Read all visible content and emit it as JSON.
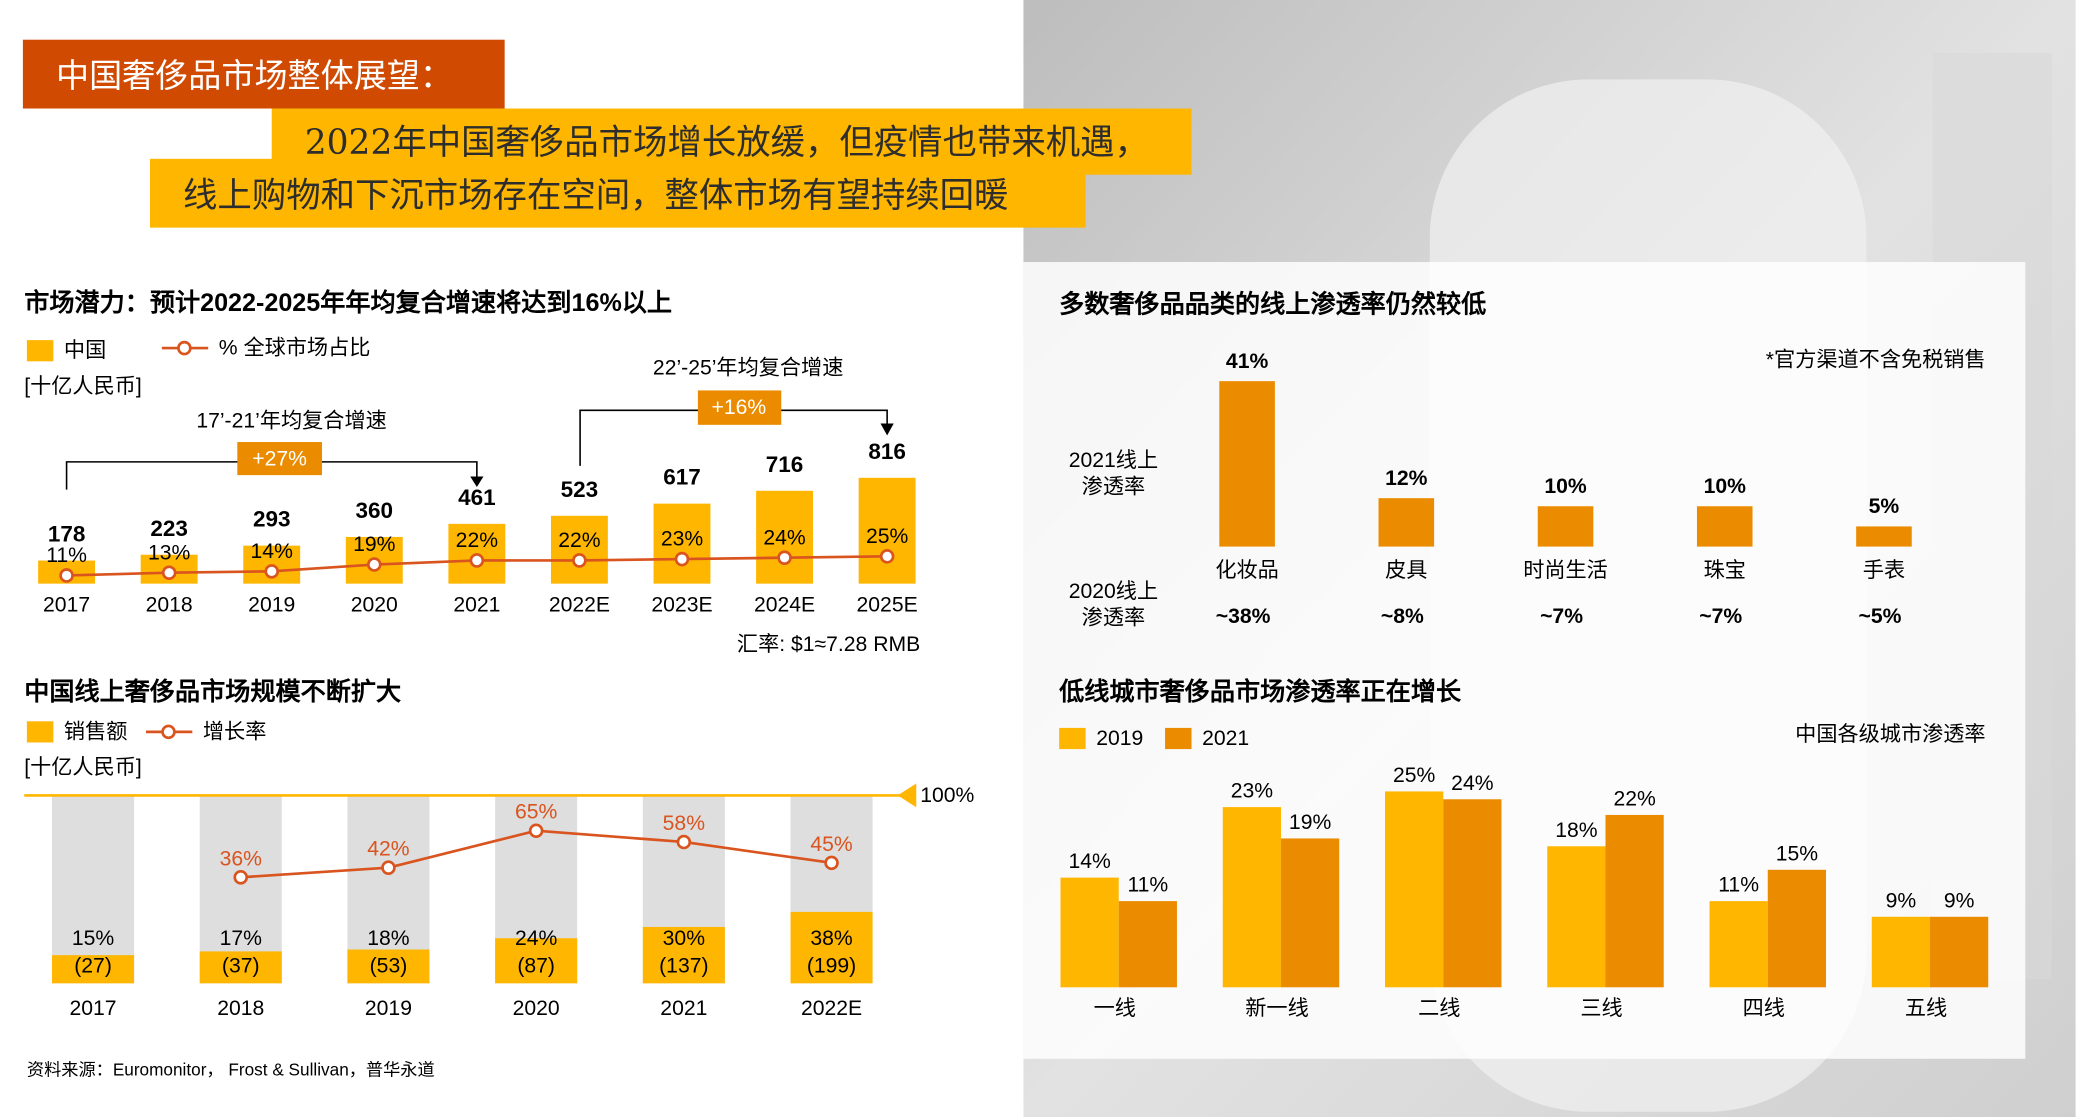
{
  "header": {
    "tag": "中国奢侈品市场整体展望：",
    "headline_1": "2022年中国奢侈品市场增长放缓，但疫情也带来机遇，",
    "headline_2": "线上购物和下沉市场存在空间，整体市场有望持续回暖"
  },
  "chart_data": [
    {
      "type": "combo",
      "title": "市场潜力：预计2022-2025年年均复合增速将达到16%以上",
      "unit": "[十亿人民币]",
      "categories": [
        "2017",
        "2018",
        "2019",
        "2020",
        "2021",
        "2022E",
        "2023E",
        "2024E",
        "2025E"
      ],
      "series": [
        {
          "name": "中国",
          "color": "#ffb600",
          "values": [
            178,
            223,
            293,
            360,
            461,
            523,
            617,
            716,
            816
          ]
        },
        {
          "name": "% 全球市场占比",
          "type": "line",
          "axis": "y2",
          "color": "#d9541e",
          "values": [
            11,
            13,
            14,
            19,
            22,
            22,
            23,
            24,
            25
          ],
          "value_labels": [
            "11%",
            "13%",
            "14%",
            "19%",
            "22%",
            "22%",
            "23%",
            "24%",
            "25%"
          ]
        }
      ],
      "ylim": [
        0,
        1000
      ],
      "y2lim": [
        5,
        100
      ],
      "annotations": [
        "17’-21’年均复合增速",
        "+27%",
        "22’-25’年均复合增速",
        "+16%"
      ],
      "note": "汇率: $1≈7.28 RMB"
    },
    {
      "type": "share",
      "title": "中国线上奢侈品市场规模不断扩大",
      "unit": "[十亿人民币]",
      "categories": [
        "2017",
        "2018",
        "2019",
        "2020",
        "2021",
        "2022E"
      ],
      "series": [
        {
          "name": "销售额",
          "color": "#ffb600",
          "values": [
            15,
            17,
            18,
            24,
            30,
            38
          ],
          "value_labels": [
            "15%",
            "17%",
            "18%",
            "24%",
            "30%",
            "38%"
          ],
          "amounts": [
            27,
            37,
            53,
            87,
            137,
            199
          ],
          "amount_labels": [
            "(27)",
            "(37)",
            "(53)",
            "(87)",
            "(137)",
            "(199)"
          ]
        },
        {
          "name": "增长率",
          "type": "line",
          "axis": "y2",
          "color": "#d9541e",
          "values": [
            null,
            36,
            42,
            65,
            58,
            45
          ],
          "value_labels": [
            null,
            "36%",
            "42%",
            "65%",
            "58%",
            "45%"
          ]
        }
      ],
      "ylim": [
        0,
        100
      ],
      "yticks": [
        {
          "value": 100,
          "label": "100%"
        }
      ],
      "y2lim": [
        -30,
        87
      ]
    },
    {
      "type": "bar",
      "title": "多数奢侈品品类的线上渗透率仍然较低",
      "note": "*官方渠道不含免税销售",
      "categories": [
        "化妆品",
        "皮具",
        "时尚生活",
        "珠宝",
        "手表"
      ],
      "series": [
        {
          "name": "2021线上渗透率",
          "color": "#eb8c00",
          "values": [
            41,
            12,
            10,
            10,
            5
          ],
          "value_labels": [
            "41%",
            "12%",
            "10%",
            "10%",
            "5%"
          ]
        },
        {
          "name": "2020线上渗透率",
          "values": [
            38,
            8,
            7,
            7,
            5
          ],
          "value_labels": [
            "~38%",
            "~8%",
            "~7%",
            "~7%",
            "~5%"
          ]
        }
      ],
      "ylim": [
        0,
        41
      ]
    },
    {
      "type": "grouped",
      "title": "低线城市奢侈品市场渗透率正在增长",
      "note": "中国各级城市渗透率",
      "categories": [
        "一线",
        "新一线",
        "二线",
        "三线",
        "四线",
        "五线"
      ],
      "series": [
        {
          "name": "2019",
          "color": "#ffb600",
          "values": [
            14,
            23,
            25,
            18,
            11,
            9
          ],
          "value_labels": [
            "14%",
            "23%",
            "25%",
            "18%",
            "11%",
            "9%"
          ]
        },
        {
          "name": "2021",
          "color": "#eb8c00",
          "values": [
            11,
            19,
            24,
            22,
            15,
            9
          ],
          "value_labels": [
            "11%",
            "19%",
            "24%",
            "22%",
            "15%",
            "9%"
          ]
        }
      ],
      "ylim": [
        0,
        25
      ]
    }
  ],
  "source": "资料来源：Euromonitor， Frost & Sullivan，普华永道"
}
